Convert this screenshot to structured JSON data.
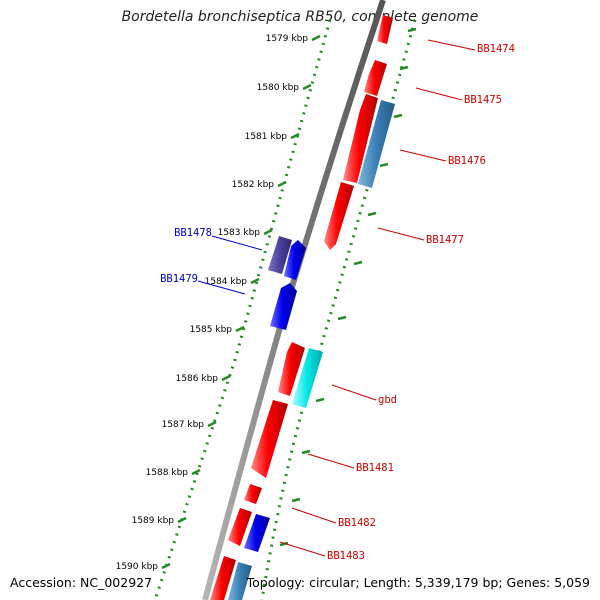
{
  "title": "Bordetella bronchiseptica RB50, complete genome",
  "footer": {
    "accession": "Accession: NC_002927",
    "summary": "Topology: circular; Length: 5,339,179 bp; Genes: 5,059"
  },
  "colors": {
    "backbone": "#888888",
    "forward_gene": "#ff0000",
    "reverse_gene": "#0000ee",
    "reverse_gene_dark": "#4a3f99",
    "gene_teal": "#3a7fb5",
    "gene_cyan": "#00e5e5",
    "tick": "#228b22",
    "label_red": "#cc0000",
    "label_blue": "#0000cc"
  },
  "kbp_ticks": [
    "1579 kbp",
    "1580 kbp",
    "1581 kbp",
    "1582 kbp",
    "1583 kbp",
    "1584 kbp",
    "1585 kbp",
    "1586 kbp",
    "1587 kbp",
    "1588 kbp",
    "1589 kbp",
    "1590 kbp"
  ],
  "gene_labels": [
    {
      "name": "BB1474",
      "color": "red"
    },
    {
      "name": "BB1475",
      "color": "red"
    },
    {
      "name": "BB1476",
      "color": "red"
    },
    {
      "name": "BB1477",
      "color": "red"
    },
    {
      "name": "BB1478",
      "color": "blue"
    },
    {
      "name": "BB1479",
      "color": "blue"
    },
    {
      "name": "gbd",
      "color": "red"
    },
    {
      "name": "BB1481",
      "color": "red"
    },
    {
      "name": "BB1482",
      "color": "red"
    },
    {
      "name": "BB1483",
      "color": "red"
    }
  ]
}
